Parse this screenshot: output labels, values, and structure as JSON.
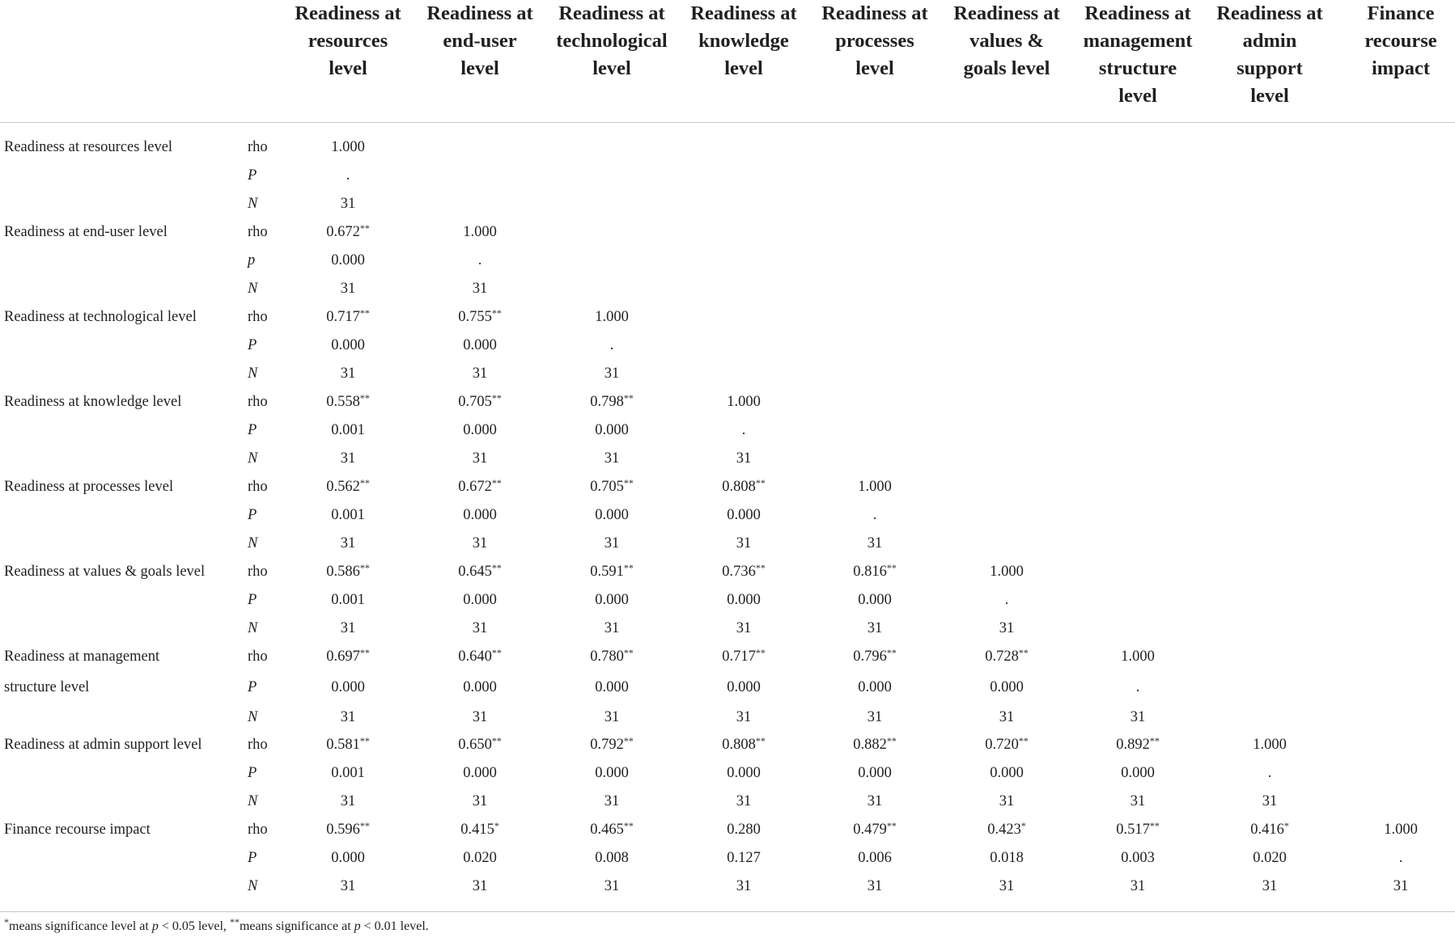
{
  "columns": [
    [
      "Readiness at",
      "resources",
      "level"
    ],
    [
      "Readiness at",
      "end-user",
      "level"
    ],
    [
      "Readiness at",
      "technological",
      "level"
    ],
    [
      "Readiness at",
      "knowledge",
      "level"
    ],
    [
      "Readiness at",
      "processes",
      "level"
    ],
    [
      "Readiness at",
      "values &",
      "goals level"
    ],
    [
      "Readiness at",
      "management",
      "structure",
      "level"
    ],
    [
      "Readiness at",
      "admin",
      "support",
      "level"
    ],
    [
      "Finance",
      "recourse",
      "impact"
    ]
  ],
  "rows": [
    {
      "label": [
        "Readiness at resources level"
      ],
      "p_symbol": "P",
      "rho": [
        [
          "1.000",
          ""
        ]
      ],
      "p": [
        "."
      ],
      "n": [
        "31"
      ]
    },
    {
      "label": [
        "Readiness at end-user level"
      ],
      "p_symbol": "p",
      "rho": [
        [
          "0.672",
          "**"
        ],
        [
          "1.000",
          ""
        ]
      ],
      "p": [
        "0.000",
        "."
      ],
      "n": [
        "31",
        "31"
      ]
    },
    {
      "label": [
        "Readiness at technological level"
      ],
      "p_symbol": "P",
      "rho": [
        [
          "0.717",
          "**"
        ],
        [
          "0.755",
          "**"
        ],
        [
          "1.000",
          ""
        ]
      ],
      "p": [
        "0.000",
        "0.000",
        "."
      ],
      "n": [
        "31",
        "31",
        "31"
      ]
    },
    {
      "label": [
        "Readiness at knowledge level"
      ],
      "p_symbol": "P",
      "rho": [
        [
          "0.558",
          "**"
        ],
        [
          "0.705",
          "**"
        ],
        [
          "0.798",
          "**"
        ],
        [
          "1.000",
          ""
        ]
      ],
      "p": [
        "0.001",
        "0.000",
        "0.000",
        "."
      ],
      "n": [
        "31",
        "31",
        "31",
        "31"
      ]
    },
    {
      "label": [
        "Readiness at processes level"
      ],
      "p_symbol": "P",
      "rho": [
        [
          "0.562",
          "**"
        ],
        [
          "0.672",
          "**"
        ],
        [
          "0.705",
          "**"
        ],
        [
          "0.808",
          "**"
        ],
        [
          "1.000",
          ""
        ]
      ],
      "p": [
        "0.001",
        "0.000",
        "0.000",
        "0.000",
        "."
      ],
      "n": [
        "31",
        "31",
        "31",
        "31",
        "31"
      ]
    },
    {
      "label": [
        "Readiness at values & goals level"
      ],
      "p_symbol": "P",
      "rho": [
        [
          "0.586",
          "**"
        ],
        [
          "0.645",
          "**"
        ],
        [
          "0.591",
          "**"
        ],
        [
          "0.736",
          "**"
        ],
        [
          "0.816",
          "**"
        ],
        [
          "1.000",
          ""
        ]
      ],
      "p": [
        "0.001",
        "0.000",
        "0.000",
        "0.000",
        "0.000",
        "."
      ],
      "n": [
        "31",
        "31",
        "31",
        "31",
        "31",
        "31"
      ]
    },
    {
      "label": [
        "Readiness at management",
        "structure level"
      ],
      "p_symbol": "P",
      "rho": [
        [
          "0.697",
          "**"
        ],
        [
          "0.640",
          "**"
        ],
        [
          "0.780",
          "**"
        ],
        [
          "0.717",
          "**"
        ],
        [
          "0.796",
          "**"
        ],
        [
          "0.728",
          "**"
        ],
        [
          "1.000",
          ""
        ]
      ],
      "p": [
        "0.000",
        "0.000",
        "0.000",
        "0.000",
        "0.000",
        "0.000",
        "."
      ],
      "n": [
        "31",
        "31",
        "31",
        "31",
        "31",
        "31",
        "31"
      ]
    },
    {
      "label": [
        "Readiness at admin support level"
      ],
      "p_symbol": "P",
      "rho": [
        [
          "0.581",
          "**"
        ],
        [
          "0.650",
          "**"
        ],
        [
          "0.792",
          "**"
        ],
        [
          "0.808",
          "**"
        ],
        [
          "0.882",
          "**"
        ],
        [
          "0.720",
          "**"
        ],
        [
          "0.892",
          "**"
        ],
        [
          "1.000",
          ""
        ]
      ],
      "p": [
        "0.001",
        "0.000",
        "0.000",
        "0.000",
        "0.000",
        "0.000",
        "0.000",
        "."
      ],
      "n": [
        "31",
        "31",
        "31",
        "31",
        "31",
        "31",
        "31",
        "31"
      ]
    },
    {
      "label": [
        "Finance recourse impact"
      ],
      "p_symbol": "P",
      "rho": [
        [
          "0.596",
          "**"
        ],
        [
          "0.415",
          "*"
        ],
        [
          "0.465",
          "**"
        ],
        [
          "0.280",
          ""
        ],
        [
          "0.479",
          "**"
        ],
        [
          "0.423",
          "*"
        ],
        [
          "0.517",
          "**"
        ],
        [
          "0.416",
          "*"
        ],
        [
          "1.000",
          ""
        ]
      ],
      "p": [
        "0.000",
        "0.020",
        "0.008",
        "0.127",
        "0.006",
        "0.018",
        "0.003",
        "0.020",
        "."
      ],
      "n": [
        "31",
        "31",
        "31",
        "31",
        "31",
        "31",
        "31",
        "31",
        "31"
      ]
    }
  ],
  "stat_labels": {
    "rho": "rho",
    "n": "N"
  },
  "footnote": {
    "star1": "*",
    "t1": "means significance level at ",
    "p1": "p",
    "t2": " < 0.05 level, ",
    "star2": "**",
    "t3": "means significance at ",
    "p2": "p",
    "t4": " < 0.01 level."
  }
}
